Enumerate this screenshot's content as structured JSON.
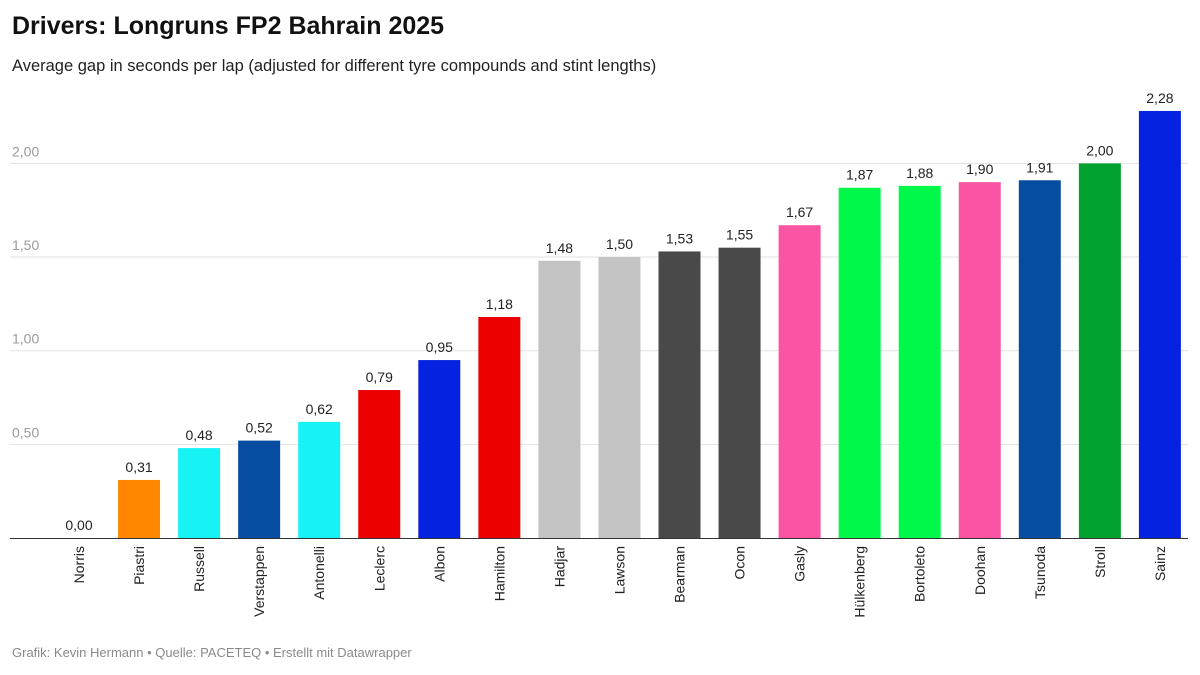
{
  "header": {
    "title": "Drivers: Longruns FP2 Bahrain 2025",
    "subtitle": "Average gap in seconds per lap (adjusted for different tyre compounds and stint lengths)"
  },
  "footer": {
    "credits": "Grafik: Kevin Hermann • Quelle: PACETEQ • Erstellt mit Datawrapper"
  },
  "chart_data": {
    "type": "bar",
    "title": "Drivers: Longruns FP2 Bahrain 2025",
    "subtitle": "Average gap in seconds per lap (adjusted for different tyre compounds and stint lengths)",
    "xlabel": "",
    "ylabel": "",
    "ylim": [
      0,
      2.28
    ],
    "grid": true,
    "yticks": [
      0.5,
      1.0,
      1.5,
      2.0
    ],
    "ytick_labels": [
      "0,50",
      "1,00",
      "1,50",
      "2,00"
    ],
    "categories": [
      "Norris",
      "Piastri",
      "Russell",
      "Verstappen",
      "Antonelli",
      "Leclerc",
      "Albon",
      "Hamilton",
      "Hadjar",
      "Lawson",
      "Bearman",
      "Ocon",
      "Gasly",
      "Hülkenberg",
      "Bortoleto",
      "Doohan",
      "Tsunoda",
      "Stroll",
      "Sainz"
    ],
    "values": [
      0.0,
      0.31,
      0.48,
      0.52,
      0.62,
      0.79,
      0.95,
      1.18,
      1.48,
      1.5,
      1.53,
      1.55,
      1.67,
      1.87,
      1.88,
      1.9,
      1.91,
      2.0,
      2.28
    ],
    "value_labels": [
      "0,00",
      "0,31",
      "0,48",
      "0,52",
      "0,62",
      "0,79",
      "0,95",
      "1,18",
      "1,48",
      "1,50",
      "1,53",
      "1,55",
      "1,67",
      "1,87",
      "1,88",
      "1,90",
      "1,91",
      "2,00",
      "2,28"
    ],
    "colors": [
      "#ff8000",
      "#ff8700",
      "#17f3f5",
      "#064ca1",
      "#17f3f5",
      "#ec0000",
      "#0522e0",
      "#ec0000",
      "#c3c3c3",
      "#c3c3c3",
      "#494949",
      "#494949",
      "#fa55a5",
      "#00f84a",
      "#00f84a",
      "#fa55a5",
      "#064ca1",
      "#00a12e",
      "#0522e0"
    ]
  }
}
